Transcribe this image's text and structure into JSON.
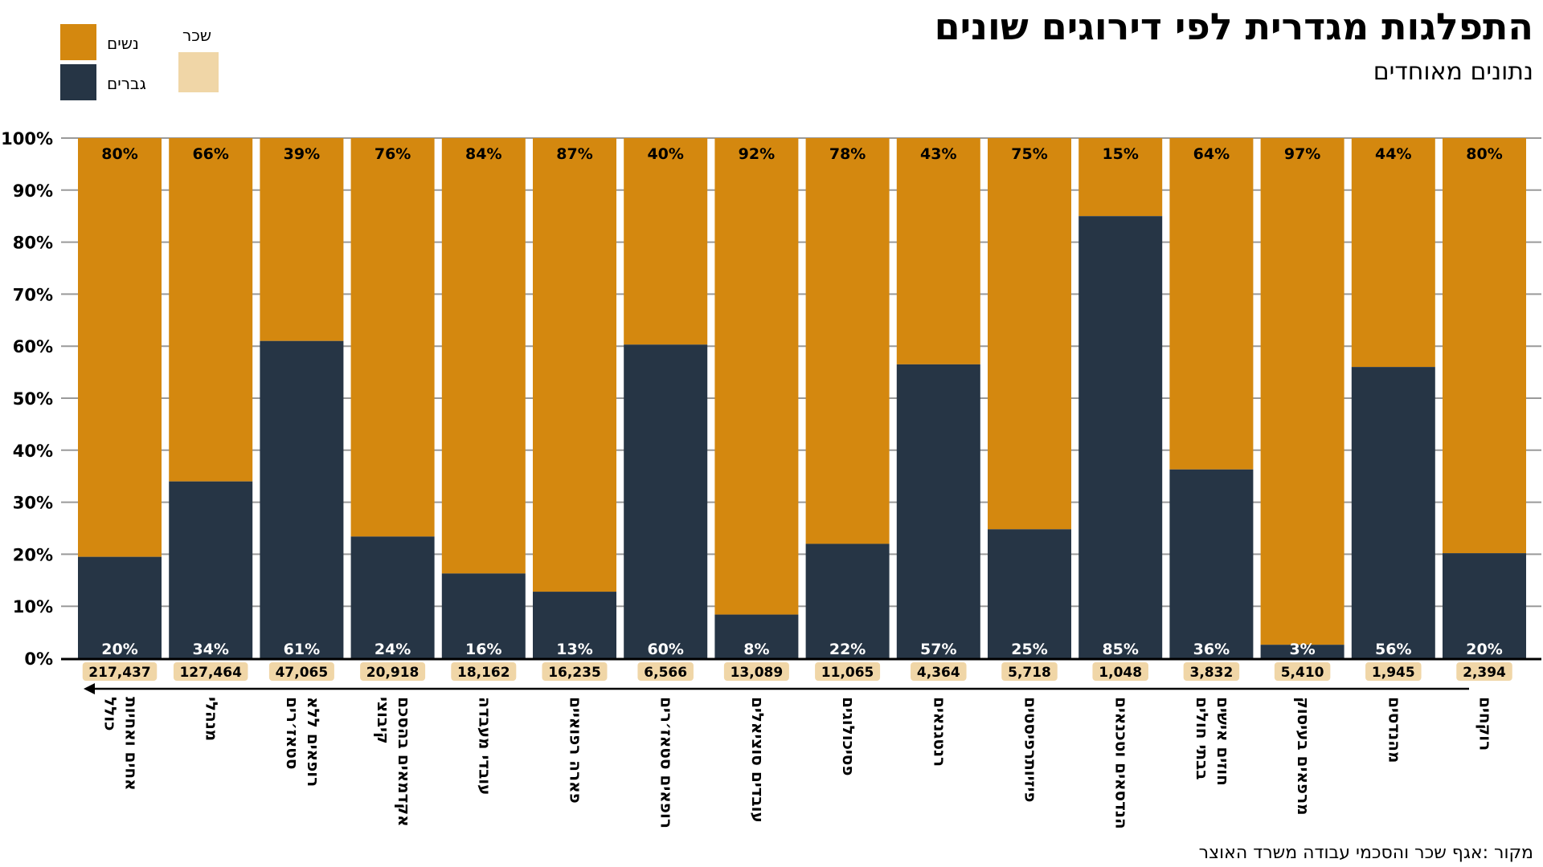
{
  "title": "התפלגות מגדרית לפי דירוגים שונים",
  "subtitle": "נתונים מאוחדים",
  "source": "מקור :אגף שכר והסכמי עבודה משרד האוצר",
  "legend": {
    "women": "נשים",
    "men": "גברים",
    "salary": "שכר"
  },
  "colors": {
    "women": "#d4880f",
    "men": "#263545",
    "salary": "#f0d6a7",
    "grid": "#9a9a9a",
    "axis": "#000000"
  },
  "chart_data": {
    "type": "bar",
    "stacked": true,
    "categories": [
      "אחים ואחיות כולל",
      "מנהלי",
      "רופאים ללא סטאז׳רים",
      "אקדמאים בהסכם קיבוצי",
      "עובדי מעבדה",
      "פארה רפואיים",
      "רופאים סטאז׳רים",
      "עובדים סוציאלים",
      "פסיכולוגים",
      "רנטגנאים",
      "פיזיותרפיסטים",
      "הנדסאים וטכנאים",
      "חוזים אישים בבתי חולים",
      "מרפאים בעיסוק",
      "מהנדסים",
      "רוקחים"
    ],
    "series": [
      {
        "name": "גברים",
        "values": [
          20,
          34,
          61,
          24,
          16,
          13,
          60,
          8,
          22,
          57,
          25,
          85,
          36,
          3,
          56,
          20
        ],
        "exact": [
          19.5,
          34,
          61,
          23.4,
          16.3,
          12.8,
          60.3,
          8.4,
          22,
          56.5,
          24.8,
          85,
          36.3,
          2.6,
          56,
          20.2
        ]
      },
      {
        "name": "נשים",
        "values": [
          80,
          66,
          39,
          76,
          84,
          87,
          40,
          92,
          78,
          43,
          75,
          15,
          64,
          97,
          44,
          80
        ]
      }
    ],
    "salary_labels": [
      "217,437",
      "127,464",
      "47,065",
      "20,918",
      "18,162",
      "16,235",
      "6,566",
      "13,089",
      "11,065",
      "4,364",
      "5,718",
      "1,048",
      "3,832",
      "5,410",
      "1,945",
      "2,394"
    ],
    "y_ticks": [
      "0%",
      "10%",
      "20%",
      "30%",
      "40%",
      "50%",
      "60%",
      "70%",
      "80%",
      "90%",
      "100%"
    ],
    "ylim": [
      0,
      100
    ],
    "grid": true,
    "legend_position": "top-left"
  }
}
